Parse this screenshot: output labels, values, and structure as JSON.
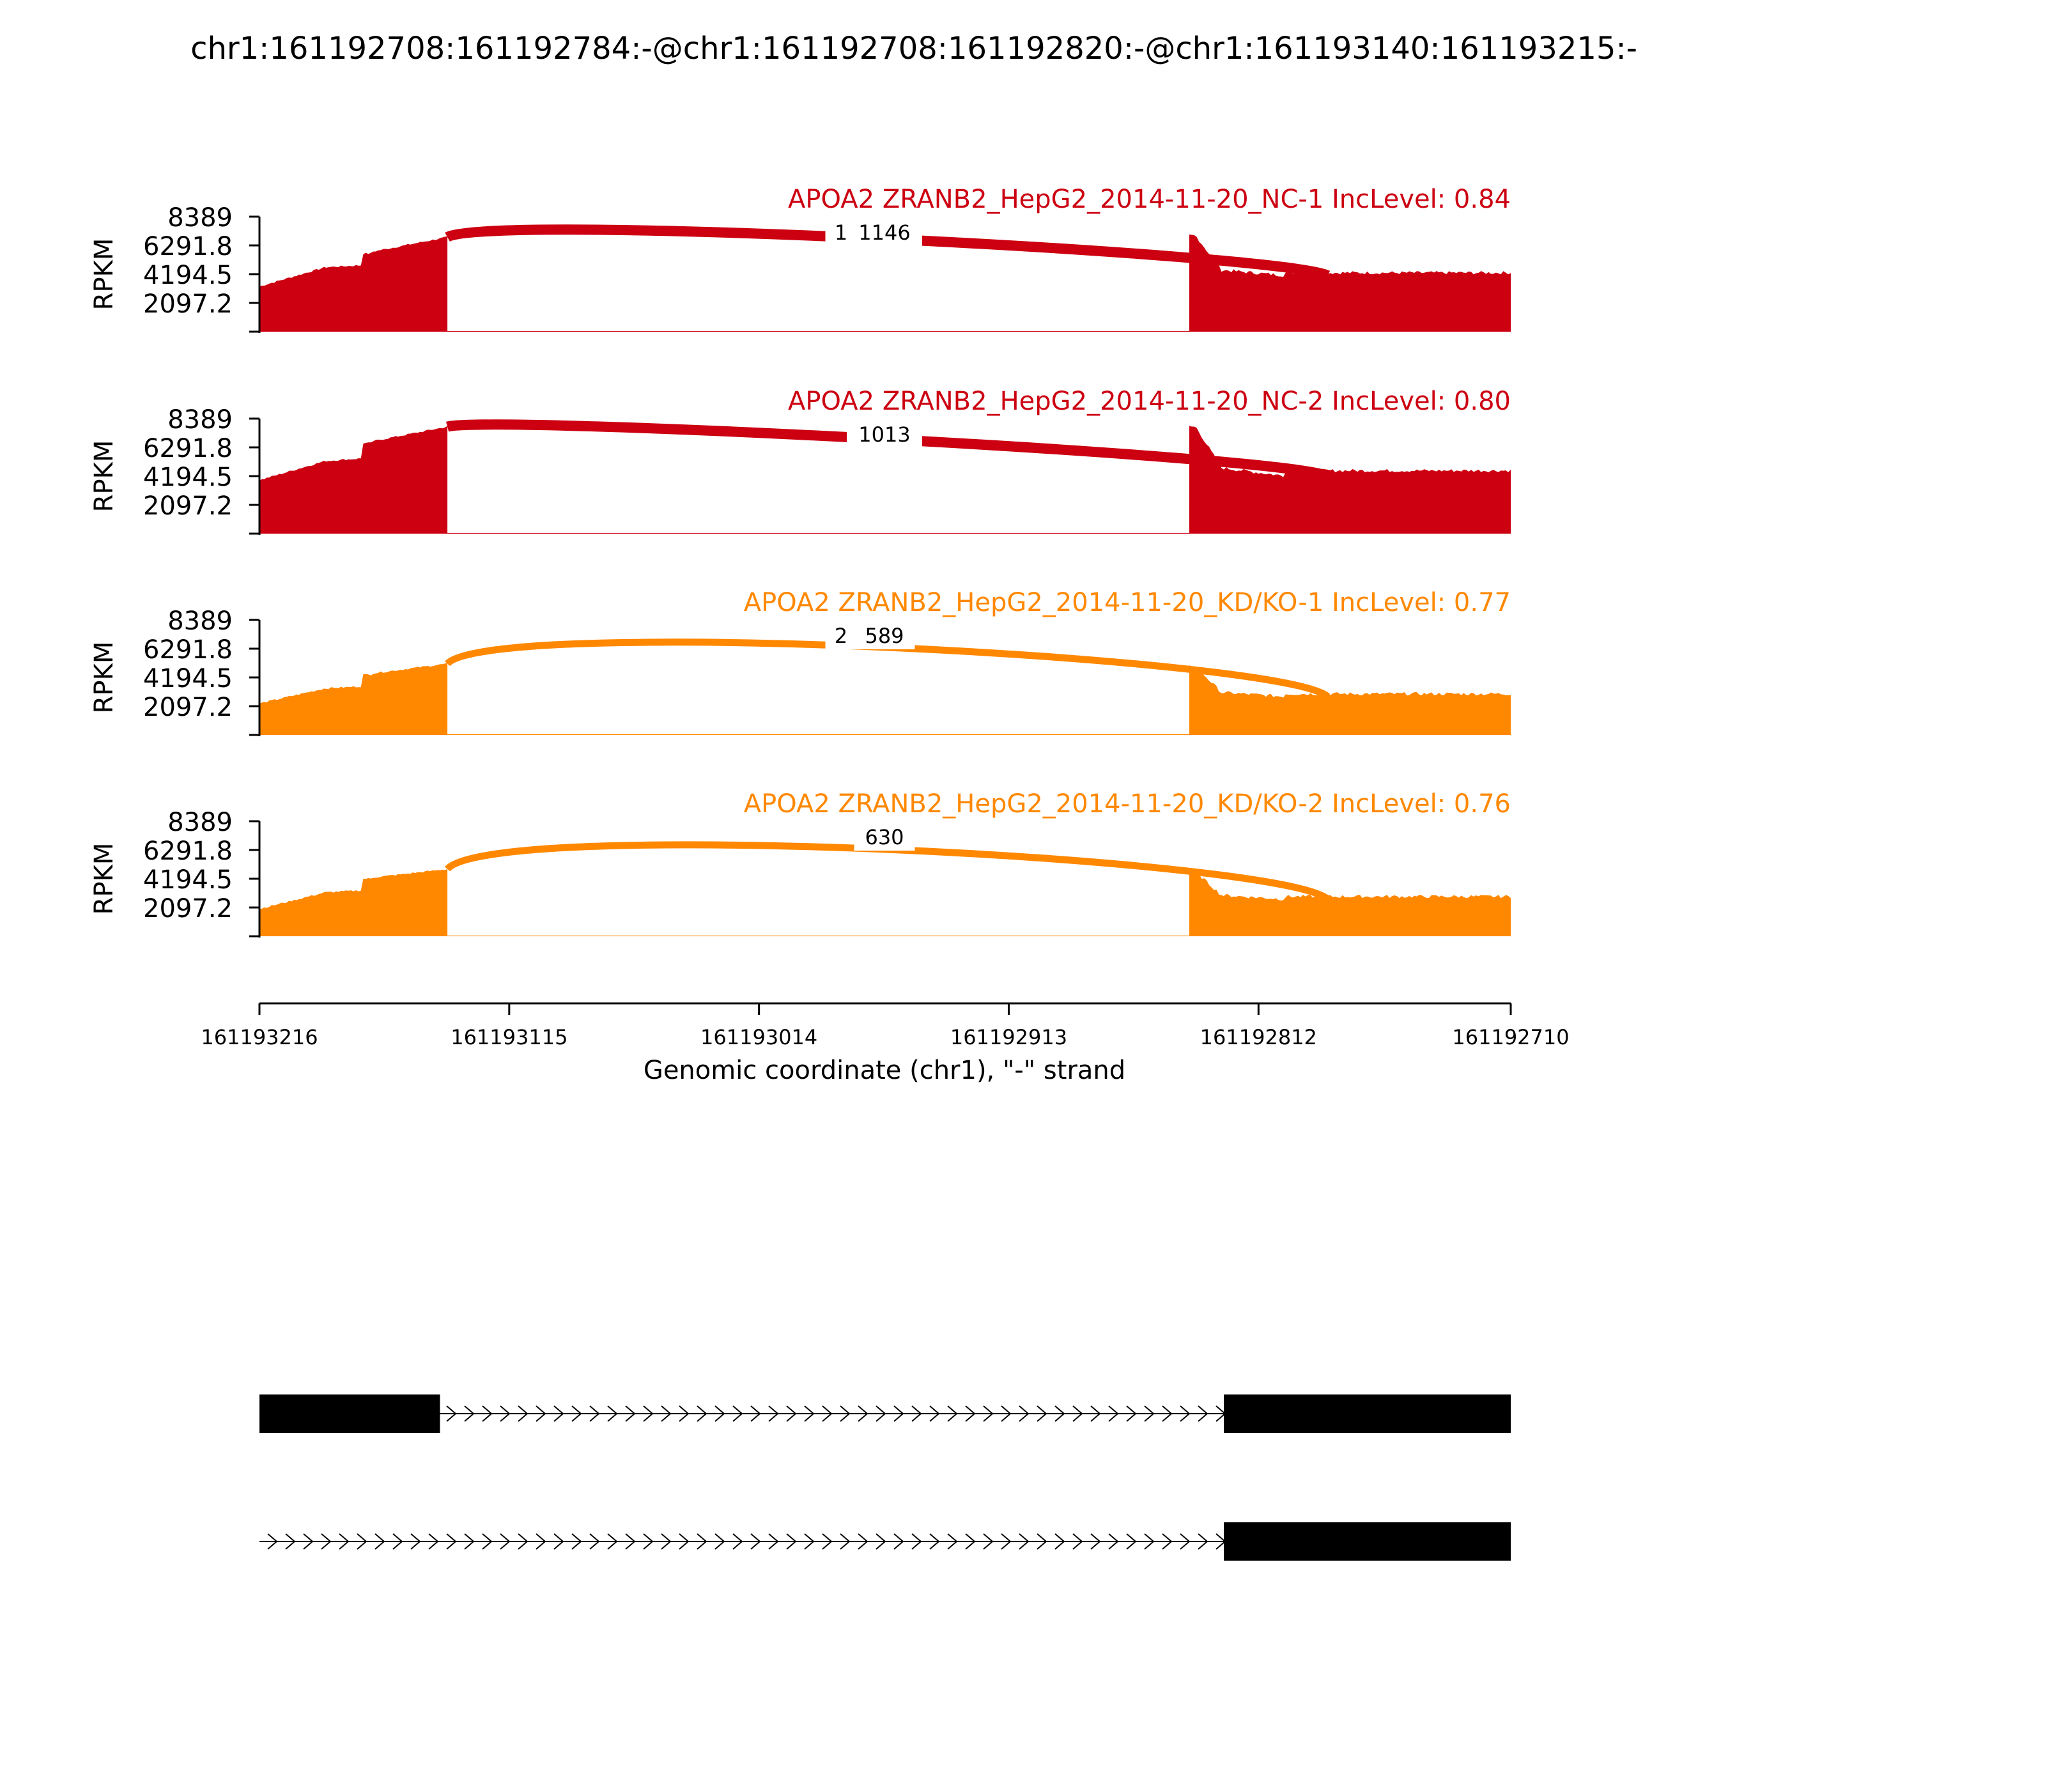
{
  "chart_data": {
    "type": "area",
    "title": "chr1:161192708:161192784:-@chr1:161192708:161192820:-@chr1:161193140:161193215:-",
    "xlabel": "Genomic coordinate (chr1), \"-\" strand",
    "ylabel": "RPKM",
    "x_range": [
      161193216,
      161192710
    ],
    "x_ticks": [
      "161193216",
      "161193115",
      "161193014",
      "161192913",
      "161192812",
      "161192710"
    ],
    "y_range": [
      0,
      8389
    ],
    "y_ticks": [
      "8389",
      "6291.8",
      "4194.5",
      "2097.2"
    ],
    "exon_regions": {
      "upstream_exon": [
        161193216,
        161193140
      ],
      "intron": [
        161193139,
        161192841
      ],
      "downstream_exon": [
        161192840,
        161192710
      ]
    },
    "junction": {
      "start": 161193140,
      "end": 161192784
    },
    "series": [
      {
        "label": "APOA2 ZRANB2_HepG2_2014-11-20_NC-1 IncLevel: 0.84",
        "color": "#cc0011",
        "junction_labels": [
          "1",
          "1146"
        ],
        "profile": {
          "exon1_start": 3300,
          "exon1_mid": 4700,
          "exon1_step": 5700,
          "exon1_end": 6900,
          "exon2_peak": 7000,
          "exon2_level": 4500,
          "exon2_dip": 4100,
          "exon2_tail": 4300
        }
      },
      {
        "label": "APOA2 ZRANB2_HepG2_2014-11-20_NC-2 IncLevel: 0.80",
        "color": "#cc0011",
        "junction_labels": [
          "1013"
        ],
        "profile": {
          "exon1_start": 3900,
          "exon1_mid": 5300,
          "exon1_step": 6600,
          "exon1_end": 7800,
          "exon2_peak": 7800,
          "exon2_level": 4800,
          "exon2_dip": 4200,
          "exon2_tail": 4600
        }
      },
      {
        "label": "APOA2 ZRANB2_HepG2_2014-11-20_KD/KO-1 IncLevel: 0.77",
        "color": "#ff8800",
        "junction_labels": [
          "2",
          "589"
        ],
        "profile": {
          "exon1_start": 2300,
          "exon1_mid": 3400,
          "exon1_step": 4400,
          "exon1_end": 5200,
          "exon2_peak": 5000,
          "exon2_level": 3100,
          "exon2_dip": 2800,
          "exon2_tail": 3000
        }
      },
      {
        "label": "APOA2 ZRANB2_HepG2_2014-11-20_KD/KO-2 IncLevel: 0.76",
        "color": "#ff8800",
        "junction_labels": [
          "630"
        ],
        "profile": {
          "exon1_start": 2000,
          "exon1_mid": 3200,
          "exon1_step": 4200,
          "exon1_end": 4900,
          "exon2_peak": 4700,
          "exon2_level": 3000,
          "exon2_dip": 2700,
          "exon2_tail": 2900
        }
      }
    ],
    "gene_models": [
      {
        "exons": [
          [
            161193216,
            161193143
          ],
          [
            161192826,
            161192710
          ]
        ]
      },
      {
        "exons": [
          [
            161192826,
            161192710
          ]
        ]
      }
    ]
  }
}
